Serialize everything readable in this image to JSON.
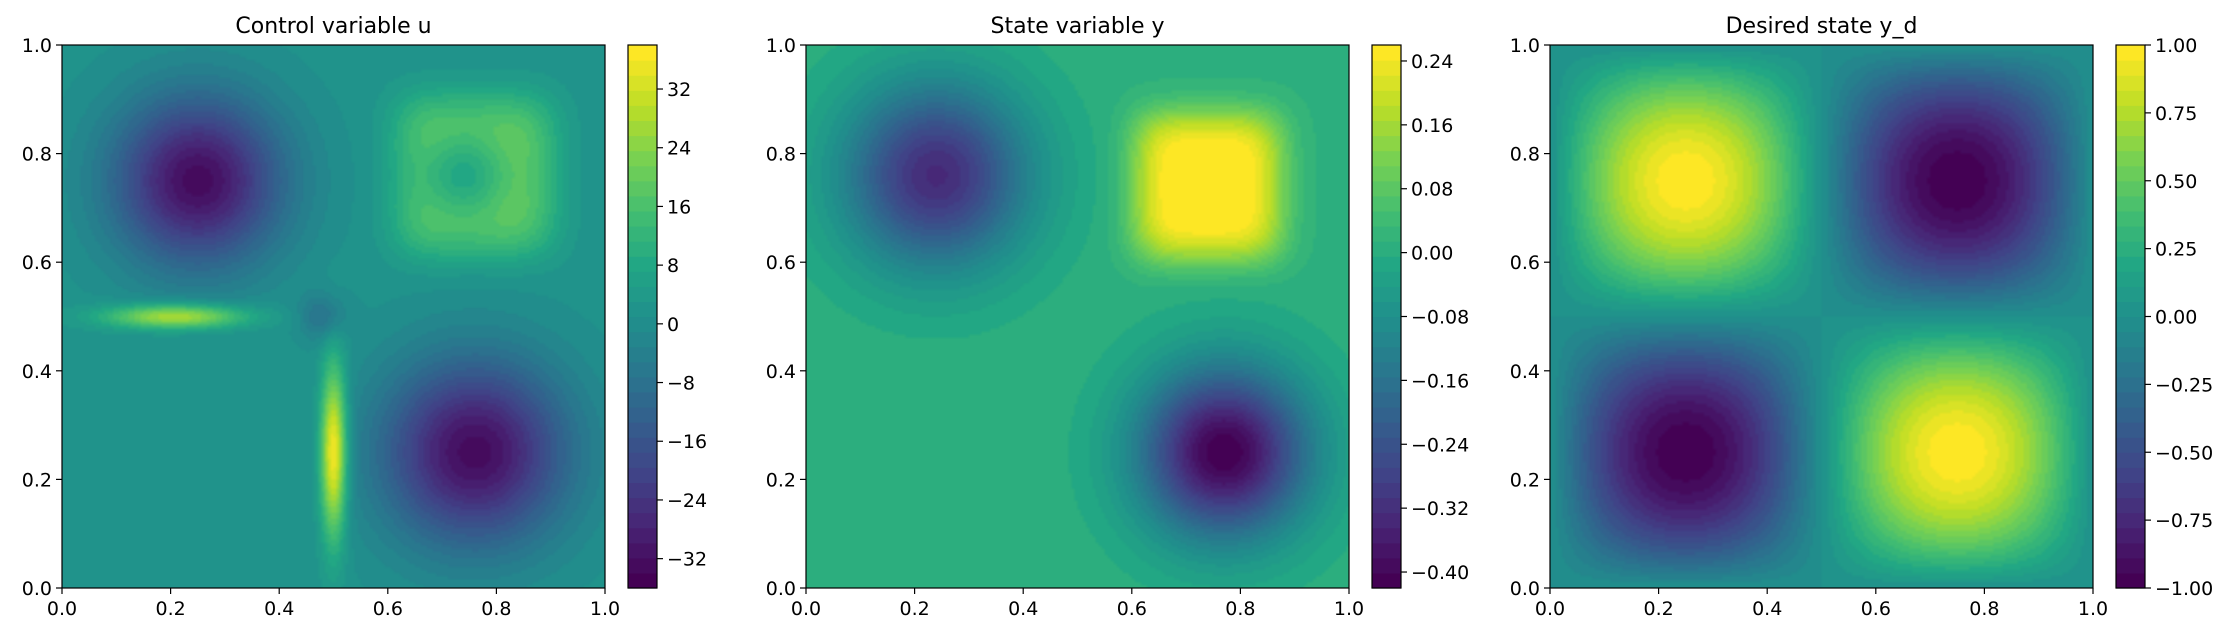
{
  "chart_data": [
    {
      "type": "heatmap",
      "title": "Control variable u",
      "field": "control",
      "xlim": [
        0,
        1
      ],
      "ylim": [
        0,
        1
      ],
      "x_ticks": [
        "0.0",
        "0.2",
        "0.4",
        "0.6",
        "0.8",
        "1.0"
      ],
      "y_ticks": [
        "0.0",
        "0.2",
        "0.4",
        "0.6",
        "0.8",
        "1.0"
      ],
      "colorbar": {
        "min": -36,
        "max": 38,
        "ticks": [
          {
            "value": -32,
            "label": "−32"
          },
          {
            "value": -24,
            "label": "−24"
          },
          {
            "value": -16,
            "label": "−16"
          },
          {
            "value": -8,
            "label": "−8"
          },
          {
            "value": 0,
            "label": "0"
          },
          {
            "value": 8,
            "label": "8"
          },
          {
            "value": 16,
            "label": "16"
          },
          {
            "value": 24,
            "label": "24"
          },
          {
            "value": 32,
            "label": "32"
          }
        ]
      },
      "features": [
        {
          "x": 0.25,
          "y": 0.75,
          "value": -34
        },
        {
          "x": 0.75,
          "y": 0.25,
          "value": -34
        },
        {
          "x": 0.75,
          "y": 0.75,
          "value": 18
        },
        {
          "x": 0.75,
          "y": 0.75,
          "value": 4
        },
        {
          "x": 0.5,
          "y": 0.25,
          "value": 38
        },
        {
          "x": 0.22,
          "y": 0.5,
          "value": 30
        }
      ]
    },
    {
      "type": "heatmap",
      "title": "State variable y",
      "field": "state",
      "xlim": [
        0,
        1
      ],
      "ylim": [
        0,
        1
      ],
      "x_ticks": [
        "0.0",
        "0.2",
        "0.4",
        "0.6",
        "0.8",
        "1.0"
      ],
      "y_ticks": [
        "0.0",
        "0.2",
        "0.4",
        "0.6",
        "0.8",
        "1.0"
      ],
      "colorbar": {
        "min": -0.42,
        "max": 0.26,
        "ticks": [
          {
            "value": -0.4,
            "label": "−0.40"
          },
          {
            "value": -0.32,
            "label": "−0.32"
          },
          {
            "value": -0.24,
            "label": "−0.24"
          },
          {
            "value": -0.16,
            "label": "−0.16"
          },
          {
            "value": -0.08,
            "label": "−0.08"
          },
          {
            "value": 0.0,
            "label": "0.00"
          },
          {
            "value": 0.08,
            "label": "0.08"
          },
          {
            "value": 0.16,
            "label": "0.16"
          },
          {
            "value": 0.24,
            "label": "0.24"
          }
        ]
      },
      "features": [
        {
          "x": 0.24,
          "y": 0.76,
          "value": -0.32
        },
        {
          "x": 0.77,
          "y": 0.25,
          "value": -0.42
        },
        {
          "x": 0.74,
          "y": 0.74,
          "value": 0.26
        }
      ]
    },
    {
      "type": "heatmap",
      "title": "Desired state y_d",
      "field": "desired",
      "xlim": [
        0,
        1
      ],
      "ylim": [
        0,
        1
      ],
      "x_ticks": [
        "0.0",
        "0.2",
        "0.4",
        "0.6",
        "0.8",
        "1.0"
      ],
      "y_ticks": [
        "0.0",
        "0.2",
        "0.4",
        "0.6",
        "0.8",
        "1.0"
      ],
      "colorbar": {
        "min": -1.0,
        "max": 1.0,
        "ticks": [
          {
            "value": -1.0,
            "label": "−1.00"
          },
          {
            "value": -0.75,
            "label": "−0.75"
          },
          {
            "value": -0.5,
            "label": "−0.50"
          },
          {
            "value": -0.25,
            "label": "−0.25"
          },
          {
            "value": 0.0,
            "label": "0.00"
          },
          {
            "value": 0.25,
            "label": "0.25"
          },
          {
            "value": 0.5,
            "label": "0.50"
          },
          {
            "value": 0.75,
            "label": "0.75"
          },
          {
            "value": 1.0,
            "label": "1.00"
          }
        ]
      },
      "features": [
        {
          "x": 0.25,
          "y": 0.75,
          "value": -1.0
        },
        {
          "x": 0.75,
          "y": 0.25,
          "value": -1.0
        },
        {
          "x": 0.75,
          "y": 0.75,
          "value": 1.0
        },
        {
          "x": 0.25,
          "y": 0.25,
          "value": 1.0
        }
      ]
    }
  ]
}
